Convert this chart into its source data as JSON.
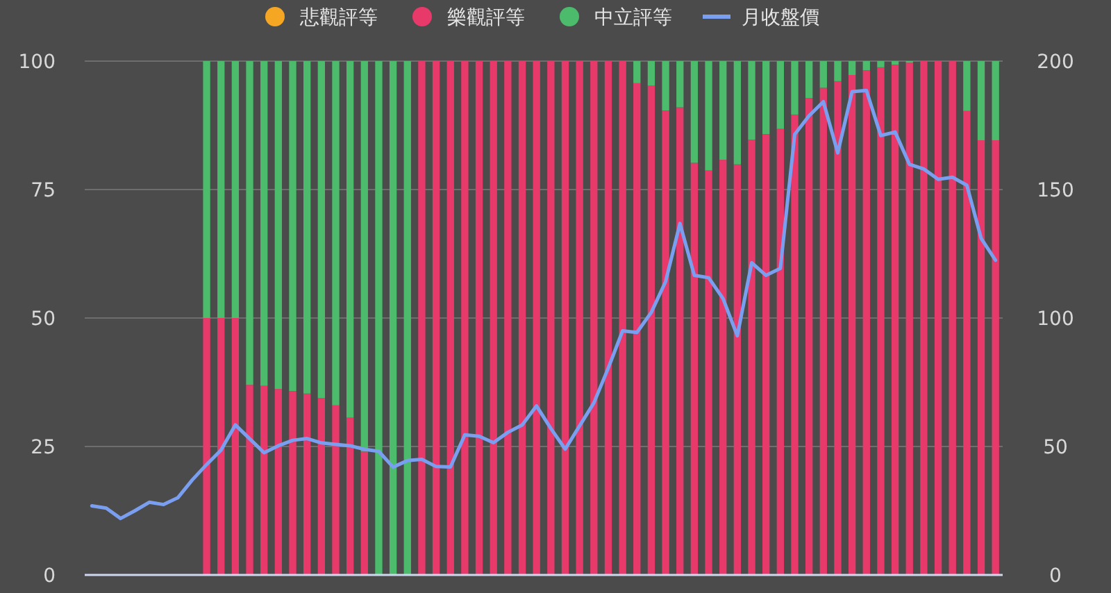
{
  "chart_data": {
    "type": "bar",
    "stacked": true,
    "categories": [
      null,
      null,
      null,
      null,
      null,
      null,
      null,
      null,
      null,
      null,
      null,
      null,
      null,
      null,
      null,
      null,
      null,
      null,
      null,
      null,
      null,
      null,
      null,
      null,
      null,
      null,
      null,
      null,
      null,
      null,
      null,
      null,
      null,
      null,
      null,
      null,
      null,
      null,
      null,
      null,
      null,
      null,
      null,
      null,
      null,
      null,
      null,
      null,
      null,
      null,
      null,
      null,
      null,
      null,
      null,
      null,
      null,
      null,
      null,
      null,
      null,
      null,
      null,
      null
    ],
    "series": [
      {
        "name": "悲觀評等",
        "color": "#f5a623",
        "values": [
          null,
          null,
          null,
          null,
          null,
          null,
          null,
          null,
          0,
          0,
          0,
          0,
          0,
          0,
          0,
          0,
          0,
          0,
          0,
          0,
          0,
          0,
          0,
          0,
          0,
          0,
          0,
          0,
          0,
          0,
          0,
          0,
          0,
          0,
          0,
          0,
          0,
          0,
          0,
          0,
          0,
          0,
          0,
          0,
          0,
          0,
          0,
          0,
          0,
          0,
          0,
          0,
          0,
          0,
          0,
          0,
          0,
          0,
          0,
          0,
          0,
          0,
          0,
          0
        ]
      },
      {
        "name": "樂觀評等",
        "color": "#e8396b",
        "values": [
          null,
          null,
          null,
          null,
          null,
          null,
          null,
          null,
          50,
          50,
          50,
          37,
          36.8,
          36.2,
          35.8,
          35.3,
          34.4,
          33,
          30.6,
          24,
          0,
          0,
          0,
          100,
          100,
          100,
          100,
          100,
          100,
          100,
          100,
          100,
          100,
          100,
          100,
          100,
          100,
          100,
          95.7,
          95.2,
          90.4,
          91,
          80.2,
          78.7,
          80.8,
          79.9,
          84.7,
          85.8,
          86.8,
          89.6,
          92.8,
          94.8,
          96.1,
          97.3,
          98.2,
          98.8,
          99.3,
          99.7,
          100,
          100,
          100,
          90.3,
          84.6,
          84.6
        ]
      },
      {
        "name": "中立評等",
        "color": "#4cbb6c",
        "values": [
          null,
          null,
          null,
          null,
          null,
          null,
          null,
          null,
          50,
          50,
          50,
          63,
          63.2,
          63.8,
          64.2,
          64.7,
          65.6,
          67,
          69.4,
          76,
          100,
          100,
          100,
          0,
          0,
          0,
          0,
          0,
          0,
          0,
          0,
          0,
          0,
          0,
          0,
          0,
          0,
          0,
          4.3,
          4.8,
          9.6,
          9,
          19.8,
          21.3,
          19.2,
          20.1,
          15.3,
          14.2,
          13.2,
          10.4,
          7.2,
          5.2,
          3.9,
          2.7,
          1.8,
          1.2,
          0.7,
          0.3,
          0,
          0,
          0,
          9.7,
          15.4,
          15.4
        ]
      },
      {
        "name": "月收盤價",
        "type": "line",
        "axis": "y2",
        "color": "#7b9ff0",
        "values": [
          26.9,
          26,
          22,
          25,
          28.3,
          27.4,
          30.1,
          37,
          43,
          48.6,
          58.4,
          53,
          47.6,
          50.3,
          52.4,
          53.1,
          51.4,
          50.8,
          50.3,
          48.9,
          48.1,
          42,
          44.5,
          45,
          42.2,
          42,
          54.5,
          54,
          51.5,
          55.5,
          58.4,
          65.8,
          57,
          49,
          58,
          67,
          80.5,
          95,
          94.4,
          102.2,
          114.2,
          136.8,
          116.6,
          115.7,
          107.6,
          93.1,
          121.5,
          116.6,
          119.3,
          171.5,
          178.7,
          184.2,
          164.3,
          188.1,
          188.6,
          171,
          172.4,
          159.8,
          158,
          154,
          154.8,
          151.7,
          131,
          122.5
        ]
      }
    ],
    "ylim": [
      0,
      100
    ],
    "yticks": [
      0,
      25,
      50,
      75,
      100
    ],
    "y2lim": [
      0,
      200
    ],
    "y2ticks": [
      0,
      50,
      100,
      150,
      200
    ],
    "grid": "y",
    "legend": "top"
  }
}
